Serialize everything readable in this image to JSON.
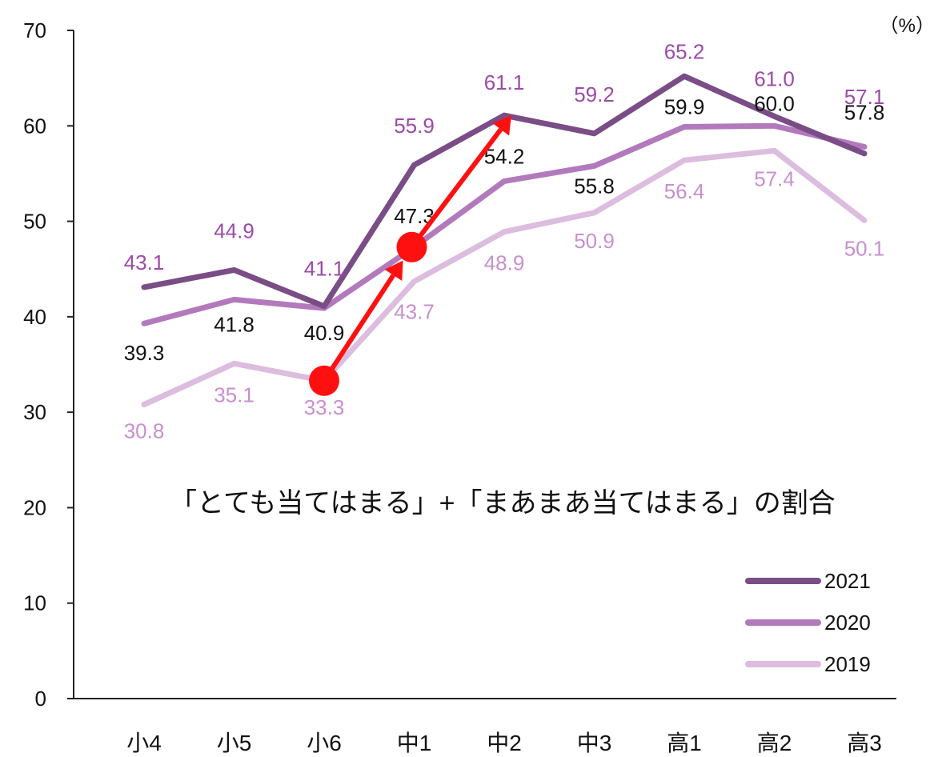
{
  "chart_data": {
    "type": "line",
    "unit_label": "（%）",
    "categories": [
      "小4",
      "小5",
      "小6",
      "中1",
      "中2",
      "中3",
      "高1",
      "高2",
      "高3"
    ],
    "ylim": [
      0,
      70
    ],
    "yticks": [
      0,
      10,
      20,
      30,
      40,
      50,
      60,
      70
    ],
    "grid": false,
    "legend_position": "bottom-right",
    "annotation": "「とても当てはまる」+「まあまあ当てはまる」の割合",
    "series": [
      {
        "name": "2021",
        "color": "#7a4d86",
        "label_color": "#9c4aa8",
        "values": [
          43.1,
          44.9,
          41.1,
          55.9,
          61.1,
          59.2,
          65.2,
          61.0,
          57.1
        ],
        "labels": [
          "43.1",
          "44.9",
          "41.1",
          "55.9",
          "61.1",
          "59.2",
          "65.2",
          "61.0",
          "57.1"
        ]
      },
      {
        "name": "2020",
        "color": "#b27abc",
        "label_color": "#111111",
        "values": [
          39.3,
          41.8,
          40.9,
          47.3,
          54.2,
          55.8,
          59.9,
          60.0,
          57.8
        ],
        "labels": [
          "39.3",
          "41.8",
          "40.9",
          "47.3",
          "54.2",
          "55.8",
          "59.9",
          "60.0",
          "57.8"
        ]
      },
      {
        "name": "2019",
        "color": "#dcbcdf",
        "label_color": "#c98fcf",
        "values": [
          30.8,
          35.1,
          33.3,
          43.7,
          48.9,
          50.9,
          56.4,
          57.4,
          50.1
        ],
        "labels": [
          "30.8",
          "35.1",
          "33.3",
          "43.7",
          "48.9",
          "50.9",
          "56.4",
          "57.4",
          "50.1"
        ]
      }
    ],
    "highlight": {
      "color": "#ff1010",
      "from": {
        "x": "小6",
        "y": 33.3
      },
      "to": {
        "x": "中1",
        "y": 47.3
      },
      "arrow_to": {
        "x": "中2",
        "y": 61.1
      }
    }
  }
}
